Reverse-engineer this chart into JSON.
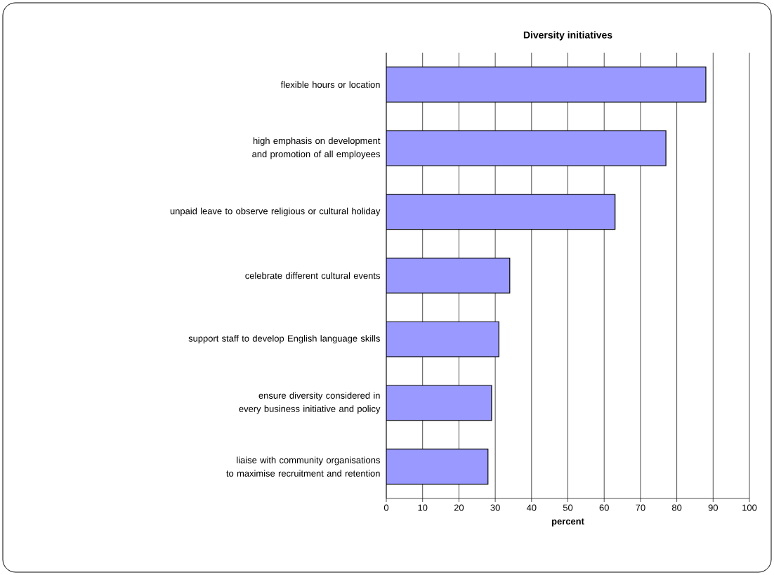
{
  "chart_data": {
    "type": "bar",
    "orientation": "horizontal",
    "title": "Diversity initiatives",
    "xlabel": "percent",
    "categories": [
      "flexible hours or location",
      "high emphasis on development and promotion of all employees",
      "unpaid leave to observe religious or cultural holiday",
      "celebrate different cultural events",
      "support staff to develop English language skills",
      "ensure diversity considered in every business initiative and policy",
      "liaise with community organisations to maximise recruitment and retention"
    ],
    "values": [
      88,
      77,
      63,
      34,
      31,
      29,
      28
    ],
    "color": "#9999ff",
    "xlim": [
      0,
      100
    ],
    "xticks": [
      0,
      10,
      20,
      30,
      40,
      50,
      60,
      70,
      80,
      90,
      100
    ],
    "grid": "x"
  }
}
